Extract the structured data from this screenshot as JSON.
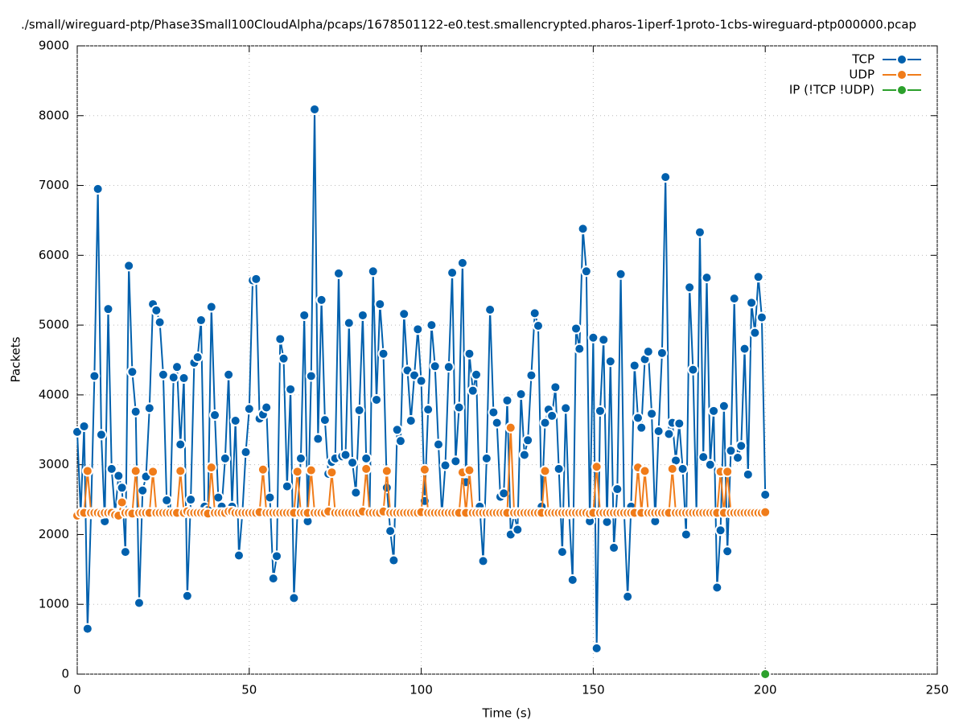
{
  "chart_data": {
    "type": "line",
    "title": "./small/wireguard-ptp/Phase3Small100CloudAlpha/pcaps/1678501122-e0.test.smallencrypted.pharos-1iperf-1proto-1cbs-wireguard-ptp000000.pcap",
    "xlabel": "Time (s)",
    "ylabel": "Packets",
    "xlim": [
      0,
      250
    ],
    "xticks": [
      0,
      50,
      100,
      150,
      200,
      250
    ],
    "ylim": [
      0,
      9000
    ],
    "yticks": [
      0,
      1000,
      2000,
      3000,
      4000,
      5000,
      6000,
      7000,
      8000,
      9000
    ],
    "grid": true,
    "legend": "top-right",
    "x": [
      0,
      1,
      2,
      3,
      4,
      5,
      6,
      7,
      8,
      9,
      10,
      11,
      12,
      13,
      14,
      15,
      16,
      17,
      18,
      19,
      20,
      21,
      22,
      23,
      24,
      25,
      26,
      27,
      28,
      29,
      30,
      31,
      32,
      33,
      34,
      35,
      36,
      37,
      38,
      39,
      40,
      41,
      42,
      43,
      44,
      45,
      46,
      47,
      48,
      49,
      50,
      51,
      52,
      53,
      54,
      55,
      56,
      57,
      58,
      59,
      60,
      61,
      62,
      63,
      64,
      65,
      66,
      67,
      68,
      69,
      70,
      71,
      72,
      73,
      74,
      75,
      76,
      77,
      78,
      79,
      80,
      81,
      82,
      83,
      84,
      85,
      86,
      87,
      88,
      89,
      90,
      91,
      92,
      93,
      94,
      95,
      96,
      97,
      98,
      99,
      100,
      101,
      102,
      103,
      104,
      105,
      106,
      107,
      108,
      109,
      110,
      111,
      112,
      113,
      114,
      115,
      116,
      117,
      118,
      119,
      120,
      121,
      122,
      123,
      124,
      125,
      126,
      127,
      128,
      129,
      130,
      131,
      132,
      133,
      134,
      135,
      136,
      137,
      138,
      139,
      140,
      141,
      142,
      143,
      144,
      145,
      146,
      147,
      148,
      149,
      150,
      151,
      152,
      153,
      154,
      155,
      156,
      157,
      158,
      159,
      160,
      161,
      162,
      163,
      164,
      165,
      166,
      167,
      168,
      169,
      170,
      171,
      172,
      173,
      174,
      175,
      176,
      177,
      178,
      179,
      180,
      181,
      182,
      183,
      184,
      185,
      186,
      187,
      188,
      189,
      190,
      191,
      192,
      193,
      194,
      195,
      196,
      197,
      198,
      199,
      200
    ],
    "series": [
      {
        "name": "TCP",
        "color": "#0060ad",
        "values": [
          3470,
          2300,
          3550,
          650,
          2300,
          4270,
          6950,
          3430,
          2190,
          5230,
          2940,
          2300,
          2840,
          2670,
          1750,
          5850,
          4330,
          3760,
          1020,
          2630,
          2830,
          3810,
          5300,
          5210,
          5040,
          4290,
          2490,
          2300,
          4250,
          4400,
          3290,
          4240,
          1120,
          2500,
          4460,
          4540,
          5070,
          2400,
          2350,
          5260,
          3710,
          2530,
          2400,
          3090,
          4290,
          2400,
          3630,
          1700,
          2300,
          3180,
          3800,
          5640,
          5660,
          3660,
          3720,
          3820,
          2530,
          1370,
          1690,
          4800,
          4520,
          2690,
          4080,
          1090,
          2300,
          3090,
          5140,
          2190,
          4270,
          8090,
          3370,
          5360,
          3640,
          2870,
          3040,
          3090,
          5740,
          3120,
          3140,
          5030,
          3030,
          2600,
          3780,
          5140,
          3090,
          2300,
          5770,
          3930,
          5300,
          4590,
          2670,
          2050,
          1630,
          3500,
          3340,
          5160,
          4350,
          3630,
          4280,
          4940,
          4200,
          2480,
          3790,
          5000,
          4410,
          3290,
          2300,
          2990,
          4400,
          5750,
          3050,
          3820,
          5890,
          2750,
          4590,
          4060,
          4290,
          2400,
          1620,
          3090,
          5220,
          3750,
          3600,
          2540,
          2590,
          3920,
          2000,
          2300,
          2070,
          4010,
          3140,
          3350,
          4280,
          5170,
          4990,
          2400,
          3600,
          3790,
          3700,
          4110,
          2940,
          1750,
          3810,
          2300,
          1350,
          4950,
          4660,
          6380,
          5770,
          2190,
          4820,
          370,
          3770,
          4790,
          2180,
          4480,
          1810,
          2650,
          5730,
          2300,
          1110,
          2400,
          4420,
          3670,
          3530,
          4510,
          4620,
          3730,
          2190,
          3480,
          4600,
          7120,
          3440,
          3600,
          3060,
          3590,
          2940,
          2000,
          5540,
          4360,
          2300,
          6330,
          3110,
          5680,
          3000,
          3770,
          1240,
          2060,
          3840,
          1760,
          3200,
          5380,
          3100,
          3270,
          4660,
          2860,
          5320,
          4890,
          5690,
          5110,
          2570
        ]
      },
      {
        "name": "UDP",
        "color": "#f07c1a",
        "values": [
          2270,
          2310,
          2310,
          2910,
          2310,
          2310,
          2310,
          2300,
          2310,
          2310,
          2310,
          2280,
          2270,
          2460,
          2310,
          2310,
          2300,
          2910,
          2310,
          2310,
          2310,
          2310,
          2900,
          2310,
          2310,
          2310,
          2310,
          2310,
          2310,
          2310,
          2910,
          2310,
          2330,
          2310,
          2310,
          2310,
          2310,
          2310,
          2300,
          2960,
          2310,
          2310,
          2310,
          2310,
          2330,
          2330,
          2310,
          2310,
          2310,
          2310,
          2310,
          2310,
          2310,
          2320,
          2930,
          2310,
          2310,
          2310,
          2310,
          2310,
          2310,
          2310,
          2310,
          2310,
          2900,
          2310,
          2310,
          2310,
          2920,
          2310,
          2310,
          2310,
          2310,
          2330,
          2890,
          2310,
          2310,
          2310,
          2310,
          2310,
          2310,
          2310,
          2310,
          2330,
          2940,
          2310,
          2310,
          2310,
          2310,
          2330,
          2910,
          2310,
          2310,
          2310,
          2310,
          2310,
          2310,
          2310,
          2310,
          2310,
          2320,
          2930,
          2310,
          2310,
          2310,
          2310,
          2310,
          2310,
          2310,
          2310,
          2310,
          2310,
          2890,
          2310,
          2920,
          2310,
          2310,
          2310,
          2310,
          2310,
          2310,
          2310,
          2310,
          2310,
          2310,
          2310,
          3530,
          2310,
          2310,
          2310,
          2310,
          2310,
          2310,
          2310,
          2310,
          2310,
          2910,
          2310,
          2310,
          2310,
          2310,
          2310,
          2310,
          2310,
          2310,
          2310,
          2310,
          2310,
          2310,
          2300,
          2310,
          2970,
          2310,
          2310,
          2310,
          2310,
          2310,
          2310,
          2310,
          2310,
          2310,
          2310,
          2310,
          2960,
          2310,
          2910,
          2310,
          2310,
          2310,
          2310,
          2310,
          2310,
          2310,
          2940,
          2310,
          2310,
          2310,
          2310,
          2310,
          2310,
          2310,
          2310,
          2310,
          2310,
          2310,
          2310,
          2310,
          2900,
          2310,
          2900,
          2310,
          2310,
          2310,
          2310,
          2310,
          2310,
          2310,
          2310,
          2310,
          2310,
          2320
        ]
      },
      {
        "name": "IP (!TCP  !UDP)",
        "color": "#2ca02c",
        "x": [
          200
        ],
        "values": [
          0
        ]
      }
    ]
  }
}
